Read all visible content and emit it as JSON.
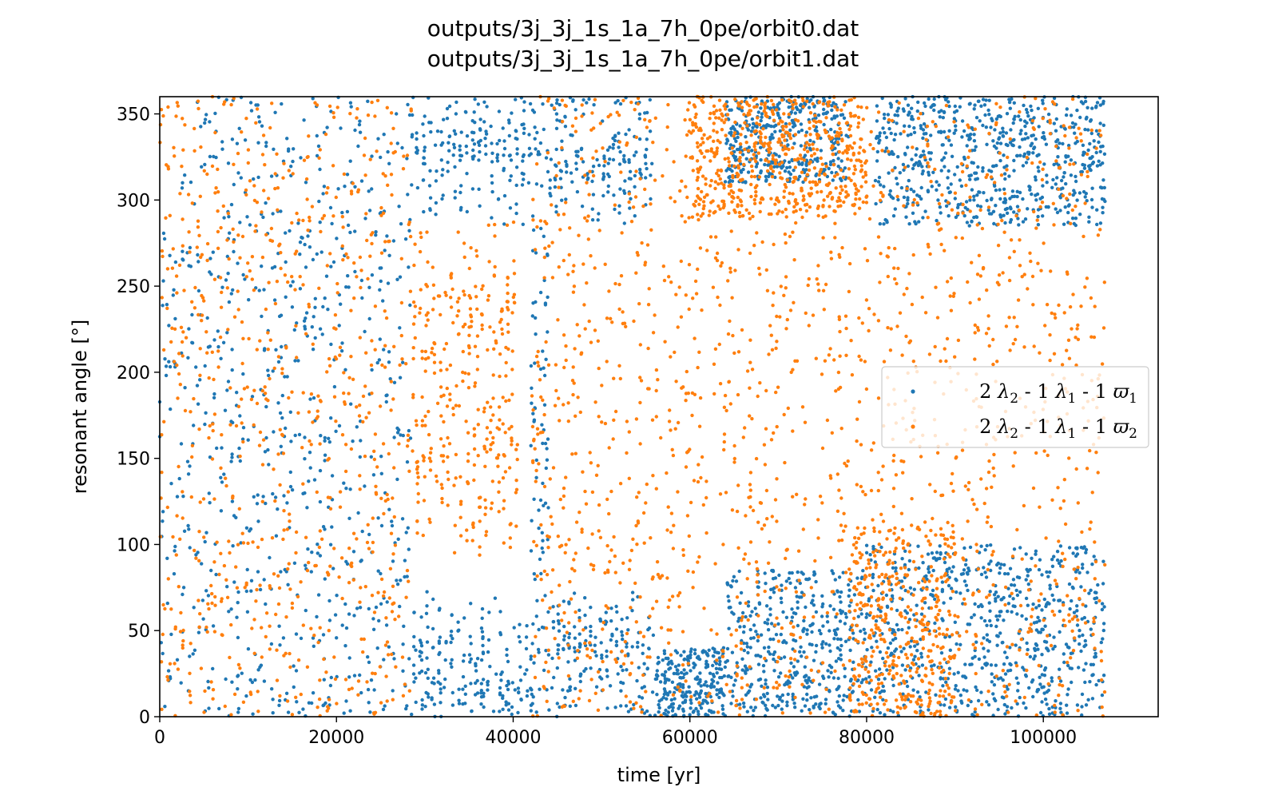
{
  "chart_data": {
    "type": "scatter",
    "title_lines": [
      "outputs/3j_3j_1s_1a_7h_0pe/orbit0.dat",
      "outputs/3j_3j_1s_1a_7h_0pe/orbit1.dat"
    ],
    "xlabel": "time [yr]",
    "ylabel": "resonant angle [°]",
    "xlim": [
      0,
      113000
    ],
    "ylim": [
      0,
      360
    ],
    "xticks": [
      0,
      20000,
      40000,
      60000,
      80000,
      100000
    ],
    "xtick_labels": [
      "0",
      "20000",
      "40000",
      "60000",
      "80000",
      "100000"
    ],
    "yticks": [
      0,
      50,
      100,
      150,
      200,
      250,
      300,
      350
    ],
    "ytick_labels": [
      "0",
      "50",
      "100",
      "150",
      "200",
      "250",
      "300",
      "350"
    ],
    "grid": false,
    "legend_placement": "center-right",
    "series": [
      {
        "name": "2 λ₂ - 1 λ₁ - 1 ϖ₁",
        "legend": {
          "pre": "2 ",
          "a": "λ",
          "a_sub": "2",
          "mid1": " - 1 ",
          "b": "λ",
          "b_sub": "1",
          "mid2": " - 1 ",
          "c": "ϖ",
          "c_sub": "1"
        },
        "color": "#1f77b4",
        "segments": [
          {
            "x": [
              0,
              28500
            ],
            "type": "uniform",
            "y": [
              0,
              360
            ]
          },
          {
            "x": [
              28500,
              42000
            ],
            "type": "libration",
            "center": 0,
            "amp_range": [
              20,
              75
            ],
            "period": 700
          },
          {
            "x": [
              42000,
              44000
            ],
            "type": "uniform",
            "y": [
              0,
              360
            ]
          },
          {
            "x": [
              44000,
              56000
            ],
            "type": "libration",
            "center": 0,
            "amp_range": [
              40,
              75
            ],
            "period": 600
          },
          {
            "x": [
              56000,
              64000
            ],
            "type": "band",
            "y": [
              0,
              40
            ]
          },
          {
            "x": [
              64000,
              80000
            ],
            "type": "band",
            "y": [
              0,
              85
            ]
          },
          {
            "x": [
              80000,
              107000
            ],
            "type": "band",
            "y": [
              0,
              100
            ]
          },
          {
            "x": [
              64000,
              78000
            ],
            "type": "band",
            "y": [
              310,
              360
            ]
          },
          {
            "x": [
              81000,
              107000
            ],
            "type": "band",
            "y": [
              285,
              360
            ]
          }
        ]
      },
      {
        "name": "2 λ₂ - 1 λ₁ - 1 ϖ₂",
        "legend": {
          "pre": "2 ",
          "a": "λ",
          "a_sub": "2",
          "mid1": " - 1 ",
          "b": "λ",
          "b_sub": "1",
          "mid2": " - 1 ",
          "c": "ϖ",
          "c_sub": "2"
        },
        "color": "#ff7f0e",
        "segments": [
          {
            "x": [
              0,
              28500
            ],
            "type": "uniform",
            "y": [
              0,
              360
            ]
          },
          {
            "x": [
              28500,
              40500
            ],
            "type": "libration",
            "center": 190,
            "amp_range": [
              40,
              100
            ],
            "period": 700
          },
          {
            "x": [
              42000,
              56000
            ],
            "type": "uniform",
            "y": [
              0,
              360
            ]
          },
          {
            "x": [
              56000,
              107000
            ],
            "type": "uniform",
            "y": [
              0,
              360
            ]
          },
          {
            "x": [
              60000,
              80000
            ],
            "type": "band",
            "y": [
              290,
              360
            ]
          },
          {
            "x": [
              78000,
              90000
            ],
            "type": "band",
            "y": [
              0,
              110
            ]
          }
        ]
      }
    ]
  }
}
